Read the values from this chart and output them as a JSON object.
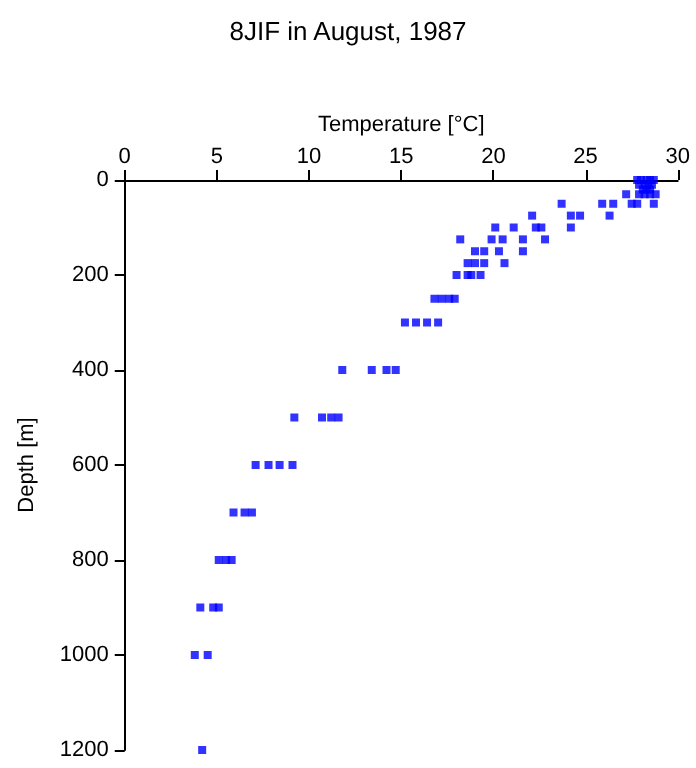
{
  "chart_data": {
    "type": "scatter",
    "title": "8JIF in August, 1987",
    "xlabel": "Temperature [°C]",
    "ylabel": "Depth [m]",
    "x": [
      27.8,
      28.0,
      28.3,
      28.5,
      28.7,
      27.9,
      28.2,
      28.4,
      28.6,
      28.1,
      28.3,
      28.5,
      27.2,
      27.9,
      28.2,
      28.5,
      28.8,
      23.7,
      25.9,
      26.5,
      27.5,
      27.8,
      28.7,
      22.1,
      24.2,
      24.7,
      26.3,
      20.1,
      21.1,
      22.3,
      22.6,
      24.2,
      18.2,
      19.9,
      20.5,
      21.6,
      22.8,
      19.0,
      19.5,
      20.3,
      21.6,
      18.6,
      19.0,
      19.5,
      20.6,
      18.0,
      18.6,
      18.8,
      19.3,
      16.8,
      17.2,
      17.6,
      17.9,
      15.2,
      15.8,
      16.4,
      17.0,
      11.8,
      13.4,
      14.2,
      14.7,
      9.2,
      10.7,
      11.2,
      11.6,
      7.1,
      7.8,
      8.4,
      9.1,
      5.9,
      6.5,
      6.9,
      5.1,
      5.5,
      5.8,
      4.1,
      4.8,
      5.1,
      3.8,
      4.5,
      4.2
    ],
    "values": [
      0,
      0,
      0,
      0,
      0,
      10,
      10,
      10,
      10,
      20,
      20,
      20,
      30,
      30,
      30,
      30,
      30,
      50,
      50,
      50,
      50,
      50,
      50,
      75,
      75,
      75,
      75,
      100,
      100,
      100,
      100,
      100,
      125,
      125,
      125,
      125,
      125,
      150,
      150,
      150,
      150,
      175,
      175,
      175,
      175,
      200,
      200,
      200,
      200,
      250,
      250,
      250,
      250,
      300,
      300,
      300,
      300,
      400,
      400,
      400,
      400,
      500,
      500,
      500,
      500,
      600,
      600,
      600,
      600,
      700,
      700,
      700,
      800,
      800,
      800,
      900,
      900,
      900,
      1000,
      1000,
      1200
    ],
    "color": "#0000ff",
    "marker": "square",
    "xlim": [
      0,
      30
    ],
    "xticks": [
      0,
      5,
      10,
      15,
      20,
      25,
      30
    ],
    "ylim": [
      1200,
      0
    ],
    "yticks": [
      0,
      200,
      400,
      600,
      800,
      1000,
      1200
    ],
    "grid": false
  }
}
